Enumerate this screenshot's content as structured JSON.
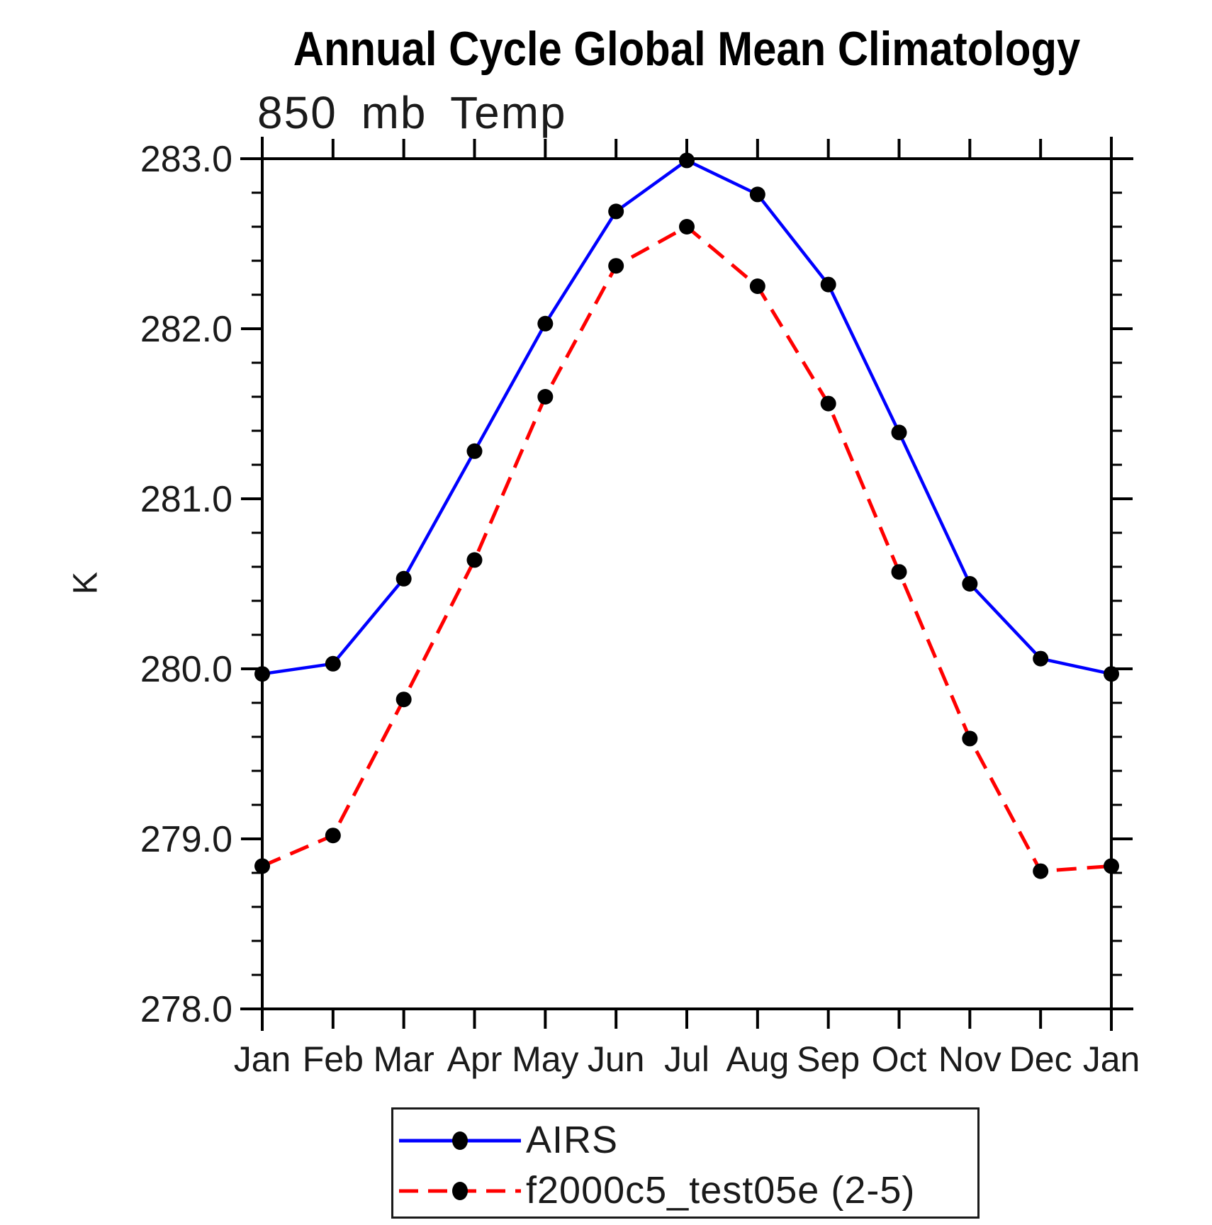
{
  "chart_data": {
    "type": "line",
    "title": "Annual Cycle Global Mean Climatology",
    "subtitle": "850 mb Temp",
    "ylabel": "K",
    "x_categories": [
      "Jan",
      "Feb",
      "Mar",
      "Apr",
      "May",
      "Jun",
      "Jul",
      "Aug",
      "Sep",
      "Oct",
      "Nov",
      "Dec",
      "Jan"
    ],
    "ylim": [
      278.0,
      283.0
    ],
    "y_major_step": 1.0,
    "y_minor_step": 0.2,
    "y_tick_values": [
      278.0,
      279.0,
      280.0,
      281.0,
      282.0,
      283.0
    ],
    "y_tick_labels": [
      "278.0",
      "279.0",
      "280.0",
      "281.0",
      "282.0",
      "283.0"
    ],
    "grid": false,
    "legend_position": "bottom-center",
    "axis_color": "#000000",
    "series": [
      {
        "name": "AIRS",
        "color": "#0000ff",
        "style": "solid",
        "marker": "filled-circle",
        "marker_color": "#000000",
        "values": [
          279.97,
          280.03,
          280.53,
          281.28,
          282.03,
          282.69,
          282.99,
          282.79,
          282.26,
          281.39,
          280.5,
          280.06,
          279.97
        ]
      },
      {
        "name": "f2000c5_test05e (2-5)",
        "color": "#ff0000",
        "style": "dashed",
        "marker": "filled-circle",
        "marker_color": "#000000",
        "values": [
          278.84,
          279.02,
          279.82,
          280.64,
          281.6,
          282.37,
          282.6,
          282.25,
          281.56,
          280.57,
          279.59,
          278.81,
          278.84
        ]
      }
    ]
  }
}
